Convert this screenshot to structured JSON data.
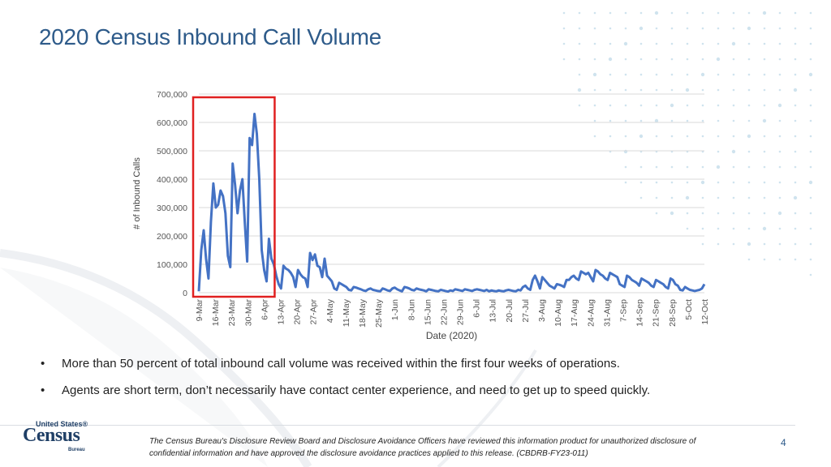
{
  "slide": {
    "title": "2020 Census Inbound Call Volume",
    "page_number": "4",
    "bullets": [
      "More than 50 percent of total inbound call volume was received within the first four weeks of operations.",
      "Agents are short term, don’t necessarily have contact center experience, and need to get up to speed quickly."
    ],
    "disclaimer": "The Census Bureau's Disclosure Review Board and Disclosure Avoidance Officers have reviewed this information product for unauthorized disclosure of confidential information and have approved the disclosure avoidance practices applied to this release. (CBDRB-FY23-011)",
    "logo": {
      "top": "United States®",
      "main": "Census",
      "bottom": "Bureau"
    },
    "colors": {
      "title": "#2e5b8a",
      "line": "#4472c4",
      "highlight": "#e02020",
      "grid": "#d9d9d9",
      "dots": "#cfe3ee"
    }
  },
  "chart_data": {
    "type": "line",
    "title": "",
    "xlabel": "Date (2020)",
    "ylabel": "# of Inbound Calls",
    "ylim": [
      0,
      700000
    ],
    "y_ticks": [
      "0",
      "100,000",
      "200,000",
      "300,000",
      "400,000",
      "500,000",
      "600,000",
      "700,000"
    ],
    "x_ticks": [
      "9-Mar",
      "16-Mar",
      "23-Mar",
      "30-Mar",
      "6-Apr",
      "13-Apr",
      "20-Apr",
      "27-Apr",
      "4-May",
      "11-May",
      "18-May",
      "25-May",
      "1-Jun",
      "8-Jun",
      "15-Jun",
      "22-Jun",
      "29-Jun",
      "6-Jul",
      "13-Jul",
      "20-Jul",
      "27-Jul",
      "3-Aug",
      "10-Aug",
      "17-Aug",
      "24-Aug",
      "31-Aug",
      "7-Sep",
      "14-Sep",
      "21-Sep",
      "28-Sep",
      "5-Oct",
      "12-Oct"
    ],
    "grid": true,
    "highlight": {
      "x_start": 0,
      "x_end": 29
    },
    "series": [
      {
        "values": [
          5000,
          150000,
          220000,
          120000,
          50000,
          250000,
          385000,
          300000,
          310000,
          360000,
          340000,
          280000,
          130000,
          90000,
          455000,
          380000,
          280000,
          360000,
          400000,
          250000,
          110000,
          545000,
          520000,
          630000,
          560000,
          400000,
          150000,
          80000,
          40000,
          190000,
          120000,
          100000,
          60000,
          30000,
          15000,
          95000,
          85000,
          80000,
          70000,
          55000,
          20000,
          80000,
          65000,
          55000,
          50000,
          20000,
          140000,
          115000,
          135000,
          95000,
          90000,
          55000,
          120000,
          60000,
          50000,
          40000,
          15000,
          10000,
          35000,
          30000,
          25000,
          20000,
          10000,
          8000,
          20000,
          18000,
          15000,
          12000,
          8000,
          6000,
          12000,
          15000,
          10000,
          8000,
          6000,
          5000,
          15000,
          12000,
          8000,
          6000,
          15000,
          18000,
          12000,
          8000,
          5000,
          20000,
          18000,
          15000,
          10000,
          8000,
          15000,
          12000,
          10000,
          8000,
          5000,
          12000,
          10000,
          8000,
          6000,
          5000,
          10000,
          8000,
          6000,
          4000,
          8000,
          6000,
          12000,
          10000,
          8000,
          6000,
          12000,
          10000,
          8000,
          6000,
          10000,
          12000,
          10000,
          8000,
          6000,
          10000,
          5000,
          8000,
          6000,
          5000,
          8000,
          6000,
          5000,
          8000,
          10000,
          8000,
          6000,
          5000,
          10000,
          8000,
          20000,
          25000,
          15000,
          10000,
          45000,
          60000,
          40000,
          15000,
          55000,
          45000,
          35000,
          25000,
          20000,
          15000,
          30000,
          28000,
          25000,
          20000,
          45000,
          45000,
          55000,
          60000,
          50000,
          45000,
          75000,
          70000,
          65000,
          70000,
          55000,
          40000,
          80000,
          75000,
          65000,
          60000,
          50000,
          45000,
          70000,
          65000,
          60000,
          55000,
          30000,
          25000,
          20000,
          60000,
          55000,
          45000,
          40000,
          35000,
          25000,
          50000,
          45000,
          40000,
          35000,
          25000,
          20000,
          45000,
          40000,
          35000,
          30000,
          20000,
          15000,
          50000,
          45000,
          30000,
          25000,
          10000,
          8000,
          20000,
          15000,
          10000,
          8000,
          6000,
          8000,
          10000,
          15000,
          30000
        ]
      }
    ]
  }
}
